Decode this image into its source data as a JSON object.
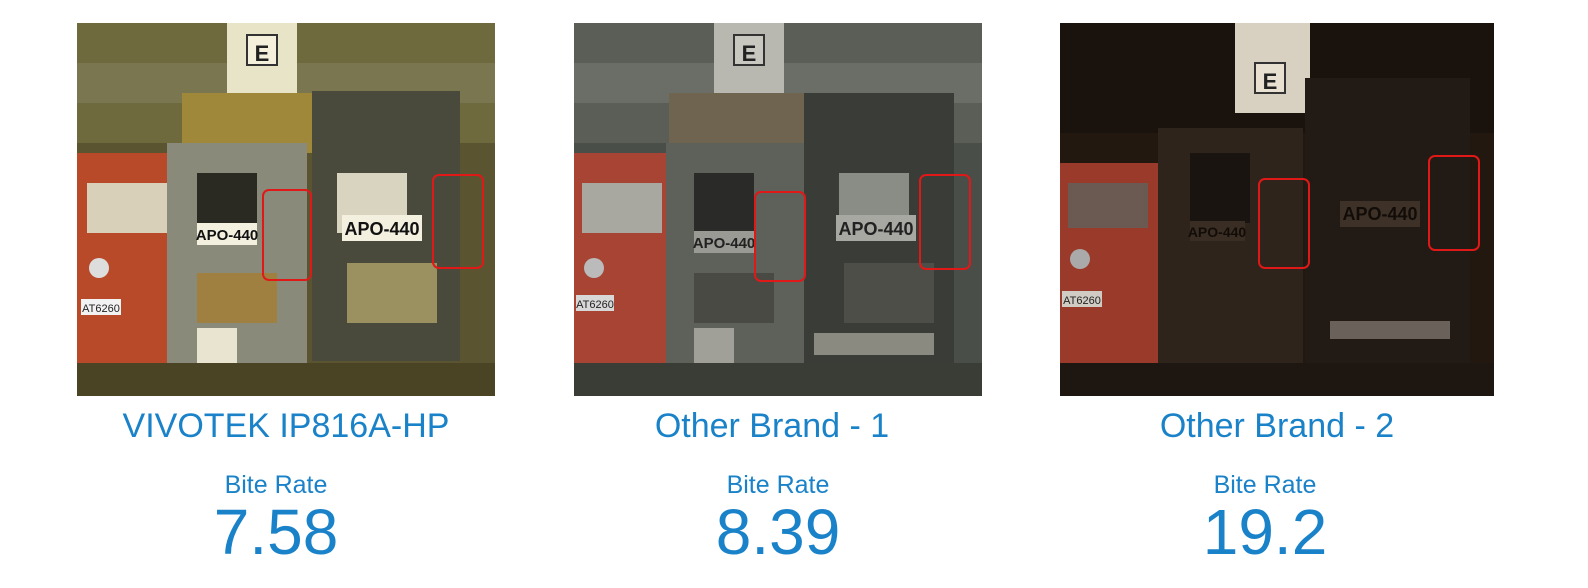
{
  "accent_color": "#1a82c8",
  "highlight_color": "#e01818",
  "panels": [
    {
      "caption": "VIVOTEK IP816A-HP",
      "rate_label": "Bite Rate",
      "rate_value": "7.58",
      "plate_text": "APO-440",
      "car_plate": "AT6260",
      "chart_letter": "E",
      "tint": "#c8c080",
      "brightness": "bright"
    },
    {
      "caption": "Other Brand - 1",
      "rate_label": "Bite Rate",
      "rate_value": "8.39",
      "plate_text": "APO-440",
      "car_plate": "AT6260",
      "chart_letter": "E",
      "tint": "#8a8f86",
      "brightness": "medium"
    },
    {
      "caption": "Other Brand - 2",
      "rate_label": "Bite Rate",
      "rate_value": "19.2",
      "plate_text": "APO-440",
      "car_plate": "AT6260",
      "chart_letter": "E",
      "tint": "#3a2a22",
      "brightness": "dark"
    }
  ]
}
